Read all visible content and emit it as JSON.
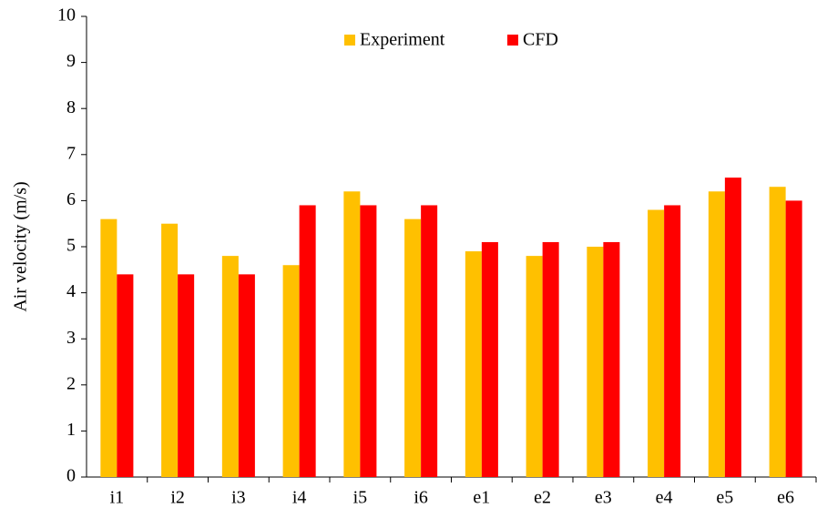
{
  "chart_data": {
    "type": "bar",
    "y_label": "Air velocity (m/s)",
    "categories": [
      "i1",
      "i2",
      "i3",
      "i4",
      "i5",
      "i6",
      "e1",
      "e2",
      "e3",
      "e4",
      "e5",
      "e6"
    ],
    "series": [
      {
        "name": "Experiment",
        "color": "#ffc000",
        "values": [
          5.6,
          5.5,
          4.8,
          4.6,
          6.2,
          5.6,
          4.9,
          4.8,
          5.0,
          5.8,
          6.2,
          6.3
        ]
      },
      {
        "name": "CFD",
        "color": "#ff0000",
        "values": [
          4.4,
          4.4,
          4.4,
          5.9,
          5.9,
          5.9,
          5.1,
          5.1,
          5.1,
          5.9,
          6.5,
          6.0
        ]
      }
    ],
    "ylim": [
      0,
      10
    ],
    "yticks": [
      0,
      1,
      2,
      3,
      4,
      5,
      6,
      7,
      8,
      9,
      10
    ],
    "grid": false,
    "legend": "upper center"
  }
}
